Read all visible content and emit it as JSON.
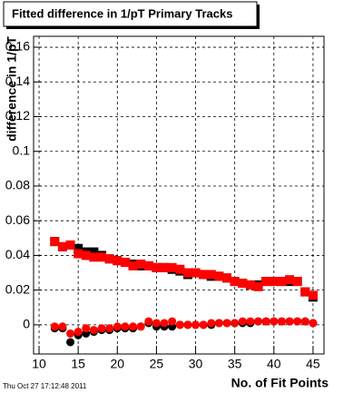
{
  "chart_data": {
    "type": "scatter",
    "title": "Fitted difference in 1/pT Primary Tracks",
    "xlabel": "No. of Fit Points",
    "ylabel": "difference in 1/pT",
    "footer": "Thu Oct 27 17:12:48 2011",
    "x": [
      12,
      13,
      14,
      15,
      16,
      17,
      18,
      19,
      20,
      21,
      22,
      23,
      24,
      25,
      26,
      27,
      28,
      29,
      30,
      31,
      32,
      33,
      34,
      35,
      36,
      37,
      38,
      39,
      40,
      41,
      42,
      43,
      44,
      45
    ],
    "series": [
      {
        "color": "#000000",
        "marker": "square",
        "values": [
          0.048,
          0.045,
          0.046,
          0.044,
          0.042,
          0.042,
          0.04,
          0.038,
          0.037,
          0.036,
          0.035,
          0.034,
          0.034,
          0.033,
          0.033,
          0.032,
          0.031,
          0.029,
          0.03,
          0.029,
          0.028,
          0.028,
          0.027,
          0.025,
          0.024,
          0.023,
          0.023,
          0.025,
          0.025,
          0.025,
          0.025,
          0.025,
          0.019,
          0.016
        ]
      },
      {
        "color": "#ff0000",
        "marker": "square",
        "values": [
          0.048,
          0.045,
          0.046,
          0.041,
          0.04,
          0.039,
          0.039,
          0.038,
          0.037,
          0.036,
          0.034,
          0.035,
          0.034,
          0.033,
          0.033,
          0.033,
          0.032,
          0.03,
          0.03,
          0.029,
          0.029,
          0.028,
          0.027,
          0.025,
          0.024,
          0.023,
          0.022,
          0.025,
          0.025,
          0.025,
          0.026,
          0.025,
          0.019,
          0.017
        ]
      },
      {
        "color": "#000000",
        "marker": "circle",
        "values": [
          -0.002,
          -0.002,
          -0.01,
          -0.006,
          -0.005,
          -0.004,
          -0.003,
          -0.003,
          -0.002,
          -0.002,
          -0.002,
          -0.001,
          0.001,
          -0.001,
          -0.001,
          -0.001,
          0,
          0,
          0,
          0,
          0,
          0.001,
          0.001,
          0.001,
          0.001,
          0.001,
          0.002,
          0.002,
          0.002,
          0.002,
          0.002,
          0.002,
          0.002,
          0.001
        ]
      },
      {
        "color": "#ff0000",
        "marker": "circle",
        "values": [
          -0.001,
          -0.001,
          -0.005,
          -0.004,
          -0.002,
          -0.003,
          -0.002,
          -0.002,
          -0.001,
          -0.001,
          -0.001,
          -0.001,
          0.002,
          0.001,
          0.001,
          0.002,
          0,
          0,
          0,
          0,
          0.001,
          0.001,
          0.001,
          0.001,
          0.002,
          0.002,
          0.002,
          0.002,
          0.002,
          0.002,
          0.002,
          0.002,
          0.002,
          0.001
        ]
      }
    ],
    "xlim": [
      9.3,
      46.4
    ],
    "ylim": [
      -0.0168,
      0.1663
    ],
    "xticks": [
      10,
      15,
      20,
      25,
      30,
      35,
      40,
      45
    ],
    "yticks": [
      0,
      0.02,
      0.04,
      0.06,
      0.08,
      0.1,
      0.12,
      0.14,
      0.16
    ],
    "grid": true
  }
}
